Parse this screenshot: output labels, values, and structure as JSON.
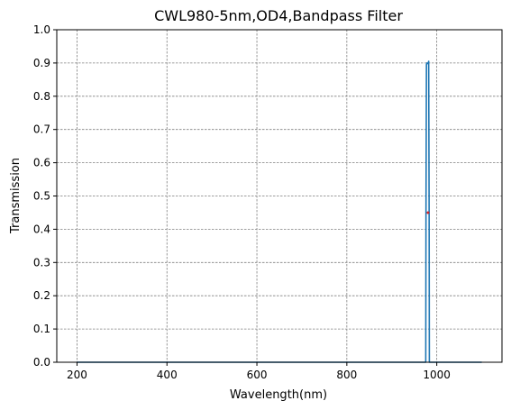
{
  "chart_data": {
    "type": "line",
    "title": "CWL980-5nm,OD4,Bandpass Filter",
    "xlabel": "Wavelength(nm)",
    "ylabel": "Transmission",
    "xlim": [
      155,
      1145
    ],
    "ylim": [
      0,
      1
    ],
    "xticks": [
      200,
      400,
      600,
      800,
      1000
    ],
    "yticks": [
      0.0,
      0.1,
      0.2,
      0.3,
      0.4,
      0.5,
      0.6,
      0.7,
      0.8,
      0.9,
      1.0
    ],
    "grid": true,
    "series": [
      {
        "color": "#1f77b4",
        "x": [
          200,
          975.5,
          976,
          977,
          978,
          979,
          980,
          981,
          982,
          983,
          983.5,
          1100
        ],
        "y": [
          0,
          0,
          0.45,
          0.895,
          0.9,
          0.898,
          0.9,
          0.9,
          0.905,
          0.45,
          0,
          0
        ]
      }
    ],
    "markers": [
      {
        "x": 980.5,
        "y": 0.45,
        "color": "#d62728"
      }
    ]
  }
}
